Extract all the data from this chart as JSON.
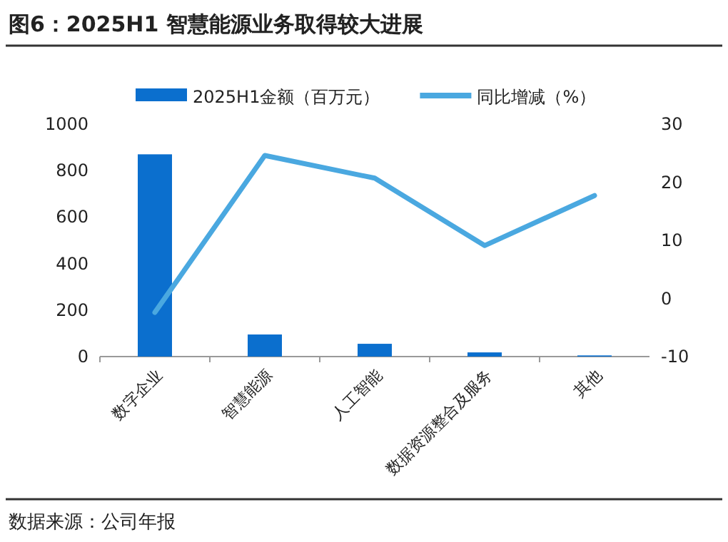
{
  "chart_data": {
    "type": "bar",
    "title": "图6：2025H1 智慧能源业务取得较大进展",
    "categories": [
      "数字企业",
      "智慧能源",
      "人工智能",
      "数据资源整合及服务",
      "其他"
    ],
    "series": [
      {
        "name": "2025H1金额（百万元）",
        "color": "#0b6fce",
        "values": [
          870,
          95,
          55,
          18,
          5
        ]
      },
      {
        "name": "同比增减（%）",
        "type": "line",
        "axis": "y2",
        "color": "#4aa8e0",
        "values": [
          -2.4,
          24.6,
          20.7,
          9.1,
          17.7
        ]
      }
    ],
    "ylim": [
      0,
      1000
    ],
    "yticks": [
      0,
      200,
      400,
      600,
      800,
      1000
    ],
    "y2lim": [
      -10,
      30
    ],
    "y2ticks": [
      -10,
      0,
      10,
      20,
      30
    ],
    "legend": "top",
    "annotations": [
      "数据来源：公司年报"
    ]
  }
}
